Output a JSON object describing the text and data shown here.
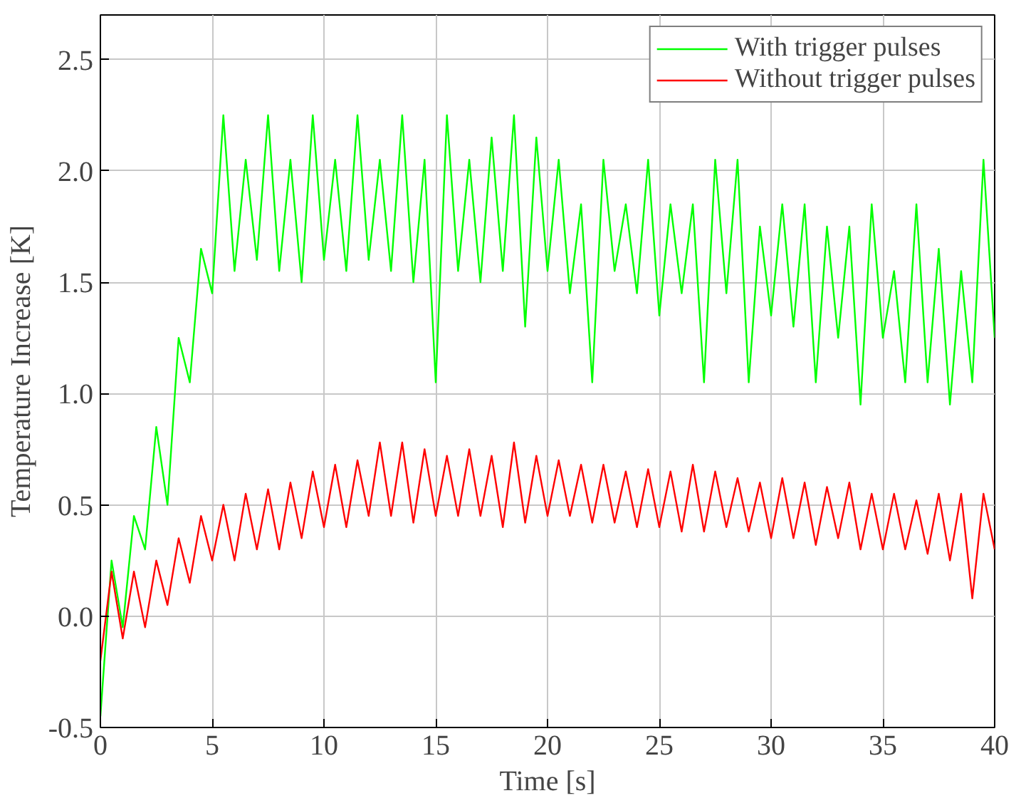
{
  "chart_data": {
    "type": "line",
    "xlabel": "Time [s]",
    "ylabel": "Temperature Increase [K]",
    "x": [
      0,
      0.5,
      1,
      1.5,
      2,
      2.5,
      3,
      3.5,
      4,
      4.5,
      5,
      5.5,
      6,
      6.5,
      7,
      7.5,
      8,
      8.5,
      9,
      9.5,
      10,
      10.5,
      11,
      11.5,
      12,
      12.5,
      13,
      13.5,
      14,
      14.5,
      15,
      15.5,
      16,
      16.5,
      17,
      17.5,
      18,
      18.5,
      19,
      19.5,
      20,
      20.5,
      21,
      21.5,
      22,
      22.5,
      23,
      23.5,
      24,
      24.5,
      25,
      25.5,
      26,
      26.5,
      27,
      27.5,
      28,
      28.5,
      29,
      29.5,
      30,
      30.5,
      31,
      31.5,
      32,
      32.5,
      33,
      33.5,
      34,
      34.5,
      35,
      35.5,
      36,
      36.5,
      37,
      37.5,
      38,
      38.5,
      39,
      39.5,
      40
    ],
    "series": [
      {
        "name": "With trigger pulses",
        "color": "#00ff00",
        "values": [
          -0.45,
          0.25,
          -0.05,
          0.45,
          0.3,
          0.85,
          0.5,
          1.25,
          1.05,
          1.65,
          1.45,
          2.25,
          1.55,
          2.05,
          1.6,
          2.25,
          1.55,
          2.05,
          1.5,
          2.25,
          1.6,
          2.05,
          1.55,
          2.25,
          1.6,
          2.05,
          1.55,
          2.25,
          1.5,
          2.05,
          1.05,
          2.25,
          1.55,
          2.05,
          1.5,
          2.15,
          1.55,
          2.25,
          1.3,
          2.15,
          1.55,
          2.05,
          1.45,
          1.85,
          1.05,
          2.05,
          1.55,
          1.85,
          1.45,
          2.05,
          1.35,
          1.85,
          1.45,
          1.85,
          1.05,
          2.05,
          1.45,
          2.05,
          1.05,
          1.75,
          1.35,
          1.85,
          1.3,
          1.85,
          1.05,
          1.75,
          1.25,
          1.75,
          0.95,
          1.85,
          1.25,
          1.55,
          1.05,
          1.85,
          1.05,
          1.65,
          0.95,
          1.55,
          1.05,
          2.05,
          1.25
        ]
      },
      {
        "name": "Without trigger pulses",
        "color": "#ff0000",
        "values": [
          -0.2,
          0.2,
          -0.1,
          0.2,
          -0.05,
          0.25,
          0.05,
          0.35,
          0.15,
          0.45,
          0.25,
          0.5,
          0.25,
          0.55,
          0.3,
          0.57,
          0.3,
          0.6,
          0.35,
          0.65,
          0.4,
          0.68,
          0.4,
          0.7,
          0.45,
          0.78,
          0.45,
          0.78,
          0.42,
          0.75,
          0.45,
          0.72,
          0.45,
          0.75,
          0.45,
          0.72,
          0.4,
          0.78,
          0.42,
          0.72,
          0.45,
          0.7,
          0.45,
          0.68,
          0.42,
          0.68,
          0.42,
          0.65,
          0.4,
          0.66,
          0.4,
          0.65,
          0.38,
          0.68,
          0.38,
          0.65,
          0.4,
          0.62,
          0.38,
          0.6,
          0.35,
          0.62,
          0.35,
          0.6,
          0.32,
          0.58,
          0.35,
          0.6,
          0.3,
          0.55,
          0.3,
          0.55,
          0.3,
          0.52,
          0.28,
          0.55,
          0.25,
          0.55,
          0.08,
          0.55,
          0.3
        ]
      }
    ],
    "xlim": [
      0,
      40
    ],
    "ylim": [
      -0.5,
      2.7
    ],
    "xticks": [
      0,
      5,
      10,
      15,
      20,
      25,
      30,
      35,
      40
    ],
    "yticks": [
      {
        "value": -0.5,
        "label": "-0.5"
      },
      {
        "value": 0,
        "label": "0.0"
      },
      {
        "value": 0.5,
        "label": "0.5"
      },
      {
        "value": 1,
        "label": "1.0"
      },
      {
        "value": 1.5,
        "label": "1.5"
      },
      {
        "value": 2,
        "label": "2.0"
      },
      {
        "value": 2.5,
        "label": "2.5"
      }
    ],
    "grid": true,
    "legend": "top right",
    "marker": "none",
    "line_style": "solid"
  }
}
